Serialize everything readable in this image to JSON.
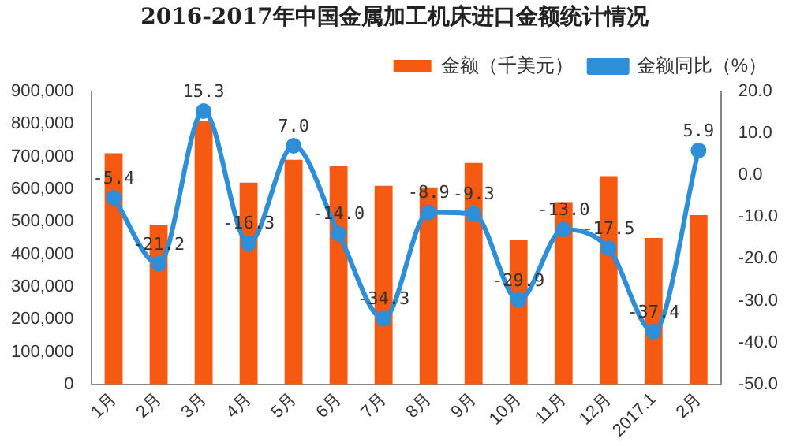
{
  "chart_data": {
    "type": "bar",
    "title": "2016-2017年中国金属加工机床进口金额统计情况",
    "categories": [
      "1月",
      "2月",
      "3月",
      "4月",
      "5月",
      "6月",
      "7月",
      "8月",
      "9月",
      "10月",
      "11月",
      "12月",
      "2017.1",
      "2月"
    ],
    "series": [
      {
        "name": "金额（千美元）",
        "color": "#f65a12",
        "values": [
          710000,
          490000,
          810000,
          620000,
          690000,
          670000,
          610000,
          605000,
          680000,
          445000,
          560000,
          640000,
          450000,
          520000
        ]
      },
      {
        "name": "金额同比（%）",
        "type": "line",
        "axis": "y2",
        "color": "#2e8ed8",
        "value_labels": [
          "-5.4",
          "-21.2",
          "15.3",
          "-16.3",
          "7.0",
          "-14.0",
          "-34.3",
          "-8.9",
          "-9.3",
          "-29.9",
          "-13.0",
          "-17.5",
          "-37.4",
          "5.9"
        ],
        "values": [
          -5.4,
          -21.2,
          15.3,
          -16.3,
          7.0,
          -14.0,
          -34.3,
          -8.9,
          -9.3,
          -29.9,
          -13.0,
          -17.5,
          -37.4,
          5.9
        ]
      }
    ],
    "ylim": [
      0,
      900000
    ],
    "yticks": [
      {
        "value": 0,
        "label": "0"
      },
      {
        "value": 100000,
        "label": "100,000"
      },
      {
        "value": 200000,
        "label": "200,000"
      },
      {
        "value": 300000,
        "label": "300,000"
      },
      {
        "value": 400000,
        "label": "400,000"
      },
      {
        "value": 500000,
        "label": "500,000"
      },
      {
        "value": 600000,
        "label": "600,000"
      },
      {
        "value": 700000,
        "label": "700,000"
      },
      {
        "value": 800000,
        "label": "800,000"
      },
      {
        "value": 900000,
        "label": "900,000"
      }
    ],
    "y2lim": [
      -50,
      20
    ],
    "y2ticks": [
      {
        "value": -50,
        "label": "-50.0"
      },
      {
        "value": -40,
        "label": "-40.0"
      },
      {
        "value": -30,
        "label": "-30.0"
      },
      {
        "value": -20,
        "label": "-20.0"
      },
      {
        "value": -10,
        "label": "-10.0"
      },
      {
        "value": 0,
        "label": "0.0"
      },
      {
        "value": 10,
        "label": "10.0"
      },
      {
        "value": 20,
        "label": "20.0"
      }
    ],
    "grid": false,
    "legend": "top right",
    "marker": "circle"
  }
}
